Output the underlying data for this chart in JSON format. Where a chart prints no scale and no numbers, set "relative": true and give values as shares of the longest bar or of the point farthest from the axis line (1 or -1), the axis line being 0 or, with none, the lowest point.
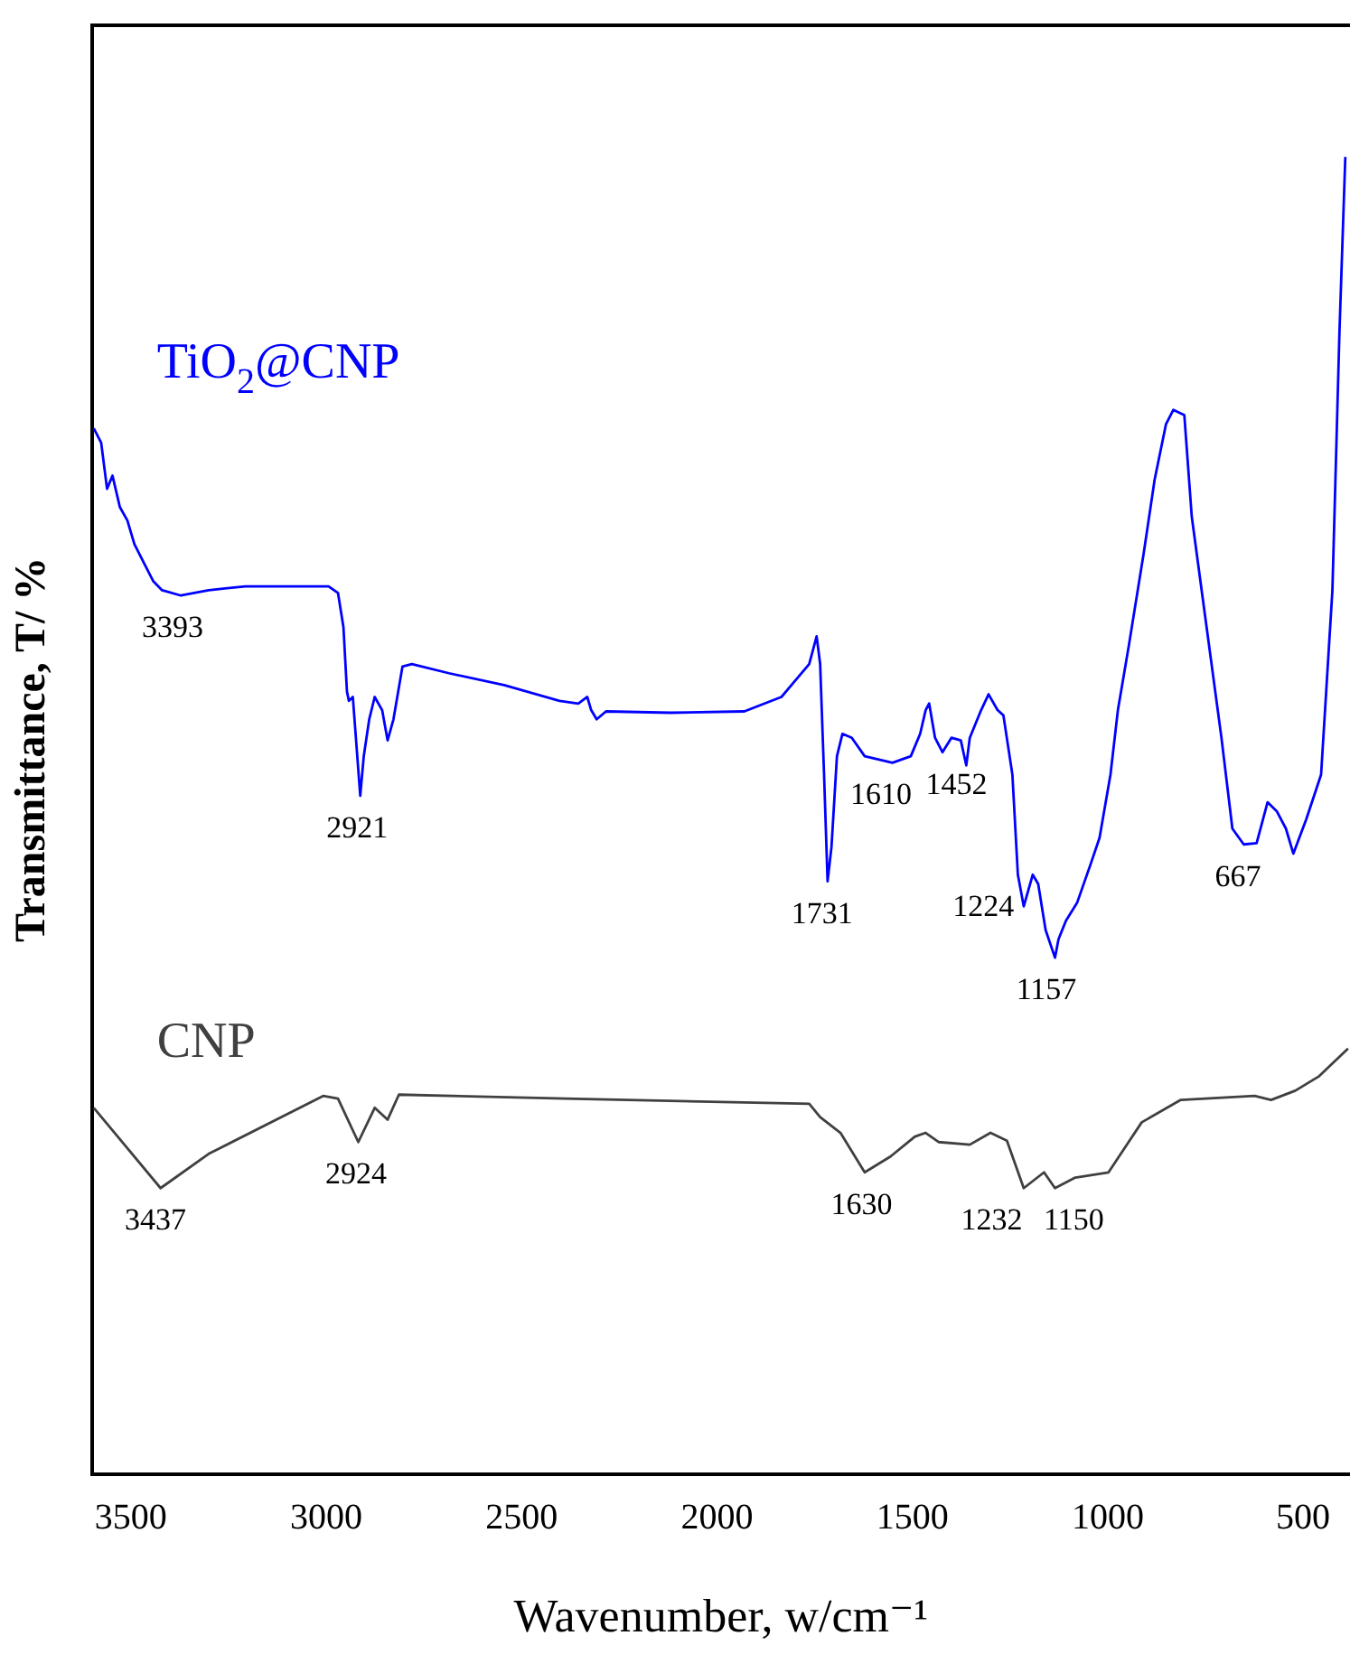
{
  "chart_data": {
    "type": "line",
    "relative": true,
    "xlabel": "Wavenumber, w/cm⁻¹",
    "ylabel": "Transmittance, T/ %",
    "xlim": [
      3600,
      380
    ],
    "xticks": [
      3500,
      3000,
      2500,
      2000,
      1500,
      1000,
      500
    ],
    "legend": false,
    "marker": "none",
    "series": [
      {
        "name": "TiO$_{2}$@CNP",
        "color": "#0000ff",
        "x": [
          3595,
          3576,
          3561,
          3547,
          3528,
          3509,
          3491,
          3467,
          3443,
          3420,
          3372,
          3301,
          3207,
          3088,
          2994,
          2970,
          2956,
          2947,
          2942,
          2932,
          2913,
          2904,
          2890,
          2876,
          2857,
          2843,
          2828,
          2805,
          2781,
          2686,
          2545,
          2403,
          2355,
          2332,
          2322,
          2308,
          2284,
          2119,
          1930,
          1835,
          1764,
          1745,
          1736,
          1726,
          1717,
          1707,
          1693,
          1679,
          1655,
          1622,
          1551,
          1504,
          1480,
          1466,
          1457,
          1442,
          1423,
          1400,
          1376,
          1362,
          1353,
          1324,
          1305,
          1282,
          1267,
          1244,
          1230,
          1215,
          1192,
          1178,
          1159,
          1135,
          1126,
          1107,
          1078,
          1045,
          1021,
          993,
          974,
          946,
          908,
          880,
          851,
          832,
          804,
          785,
          747,
          709,
          681,
          652,
          619,
          591,
          567,
          544,
          525,
          492,
          454,
          425,
          407,
          392
        ],
        "values": [
          0.794,
          0.783,
          0.748,
          0.758,
          0.734,
          0.724,
          0.706,
          0.692,
          0.678,
          0.671,
          0.667,
          0.671,
          0.674,
          0.674,
          0.674,
          0.669,
          0.643,
          0.594,
          0.587,
          0.59,
          0.515,
          0.545,
          0.573,
          0.59,
          0.58,
          0.557,
          0.573,
          0.613,
          0.615,
          0.608,
          0.599,
          0.587,
          0.585,
          0.59,
          0.58,
          0.573,
          0.579,
          0.578,
          0.579,
          0.59,
          0.615,
          0.636,
          0.615,
          0.531,
          0.45,
          0.476,
          0.545,
          0.562,
          0.559,
          0.545,
          0.54,
          0.545,
          0.562,
          0.58,
          0.585,
          0.559,
          0.548,
          0.559,
          0.557,
          0.538,
          0.559,
          0.58,
          0.592,
          0.58,
          0.576,
          0.531,
          0.455,
          0.431,
          0.455,
          0.448,
          0.413,
          0.392,
          0.406,
          0.42,
          0.434,
          0.462,
          0.483,
          0.531,
          0.58,
          0.629,
          0.699,
          0.755,
          0.797,
          0.808,
          0.804,
          0.727,
          0.643,
          0.559,
          0.49,
          0.478,
          0.479,
          0.51,
          0.503,
          0.49,
          0.471,
          0.497,
          0.531,
          0.671,
          0.867,
          1.0
        ]
      },
      {
        "name": "CNP",
        "color": "#404040",
        "x": [
          3595,
          3424,
          3301,
          3008,
          2970,
          2918,
          2876,
          2843,
          2814,
          2388,
          1764,
          1736,
          1684,
          1622,
          1556,
          1494,
          1466,
          1433,
          1353,
          1300,
          1258,
          1215,
          1163,
          1135,
          1083,
          998,
          913,
          813,
          624,
          582,
          520,
          459,
          385
        ],
        "values": [
          0.278,
          0.217,
          0.243,
          0.287,
          0.285,
          0.252,
          0.278,
          0.269,
          0.288,
          0.285,
          0.281,
          0.271,
          0.259,
          0.229,
          0.241,
          0.256,
          0.259,
          0.252,
          0.25,
          0.259,
          0.253,
          0.217,
          0.229,
          0.217,
          0.225,
          0.229,
          0.267,
          0.284,
          0.287,
          0.284,
          0.291,
          0.302,
          0.323
        ]
      }
    ],
    "annotations": [
      {
        "text": "3393",
        "x": 3393,
        "y": 0.667
      },
      {
        "text": "2921",
        "x": 2921,
        "y": 0.515
      },
      {
        "text": "1731",
        "x": 1731,
        "y": 0.45
      },
      {
        "text": "1610",
        "x": 1610,
        "y": 0.54
      },
      {
        "text": "1452",
        "x": 1452,
        "y": 0.548
      },
      {
        "text": "1224",
        "x": 1224,
        "y": 0.455
      },
      {
        "text": "1157",
        "x": 1157,
        "y": 0.392
      },
      {
        "text": "667",
        "x": 667,
        "y": 0.478
      },
      {
        "text": "3437",
        "x": 3437,
        "y": 0.217
      },
      {
        "text": "2924",
        "x": 2924,
        "y": 0.252
      },
      {
        "text": "1630",
        "x": 1630,
        "y": 0.229
      },
      {
        "text": "1232",
        "x": 1232,
        "y": 0.217
      },
      {
        "text": "1150",
        "x": 1150,
        "y": 0.217
      }
    ]
  }
}
